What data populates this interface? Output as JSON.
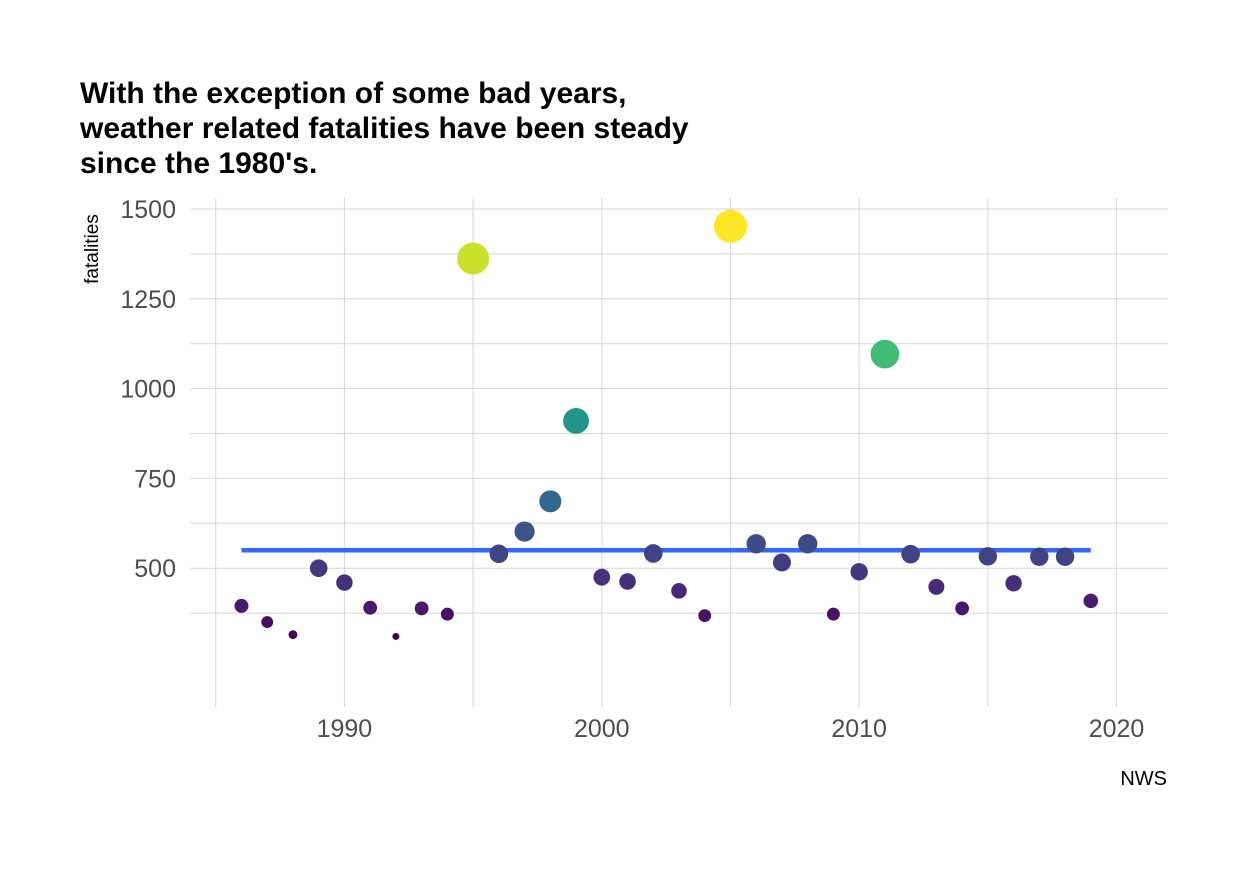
{
  "title_lines": [
    "With the exception of some bad years,",
    "weather related fatalities have been steady",
    "since the 1980's."
  ],
  "caption": "NWS",
  "colors": {
    "trend": "#3366ff",
    "grid": "#d6d6d6",
    "palette": "viridis"
  },
  "chart_data": {
    "type": "scatter",
    "title": "With the exception of some bad years, weather related fatalities have been steady since the 1980's.",
    "xlabel": "",
    "ylabel": "fatalities",
    "caption": "NWS",
    "xlim": [
      1984,
      2022
    ],
    "ylim": [
      250,
      1500
    ],
    "x_ticks": [
      1990,
      2000,
      2010,
      2020
    ],
    "y_ticks": [
      500,
      750,
      1000,
      1250,
      1500
    ],
    "grid": true,
    "legend": "none",
    "x": [
      1986,
      1987,
      1988,
      1989,
      1990,
      1991,
      1992,
      1993,
      1994,
      1995,
      1996,
      1997,
      1998,
      1999,
      2000,
      2001,
      2002,
      2003,
      2004,
      2005,
      2006,
      2007,
      2008,
      2009,
      2010,
      2011,
      2012,
      2013,
      2014,
      2015,
      2016,
      2017,
      2018,
      2019
    ],
    "y": [
      395,
      350,
      315,
      500,
      460,
      390,
      310,
      388,
      372,
      1362,
      540,
      602,
      686,
      910,
      475,
      463,
      541,
      437,
      368,
      1452,
      568,
      516,
      568,
      372,
      490,
      1096,
      539,
      448,
      388,
      533,
      458,
      532,
      532,
      409
    ],
    "trend_line": {
      "x": [
        1986,
        2019
      ],
      "y": [
        550,
        550
      ]
    }
  }
}
